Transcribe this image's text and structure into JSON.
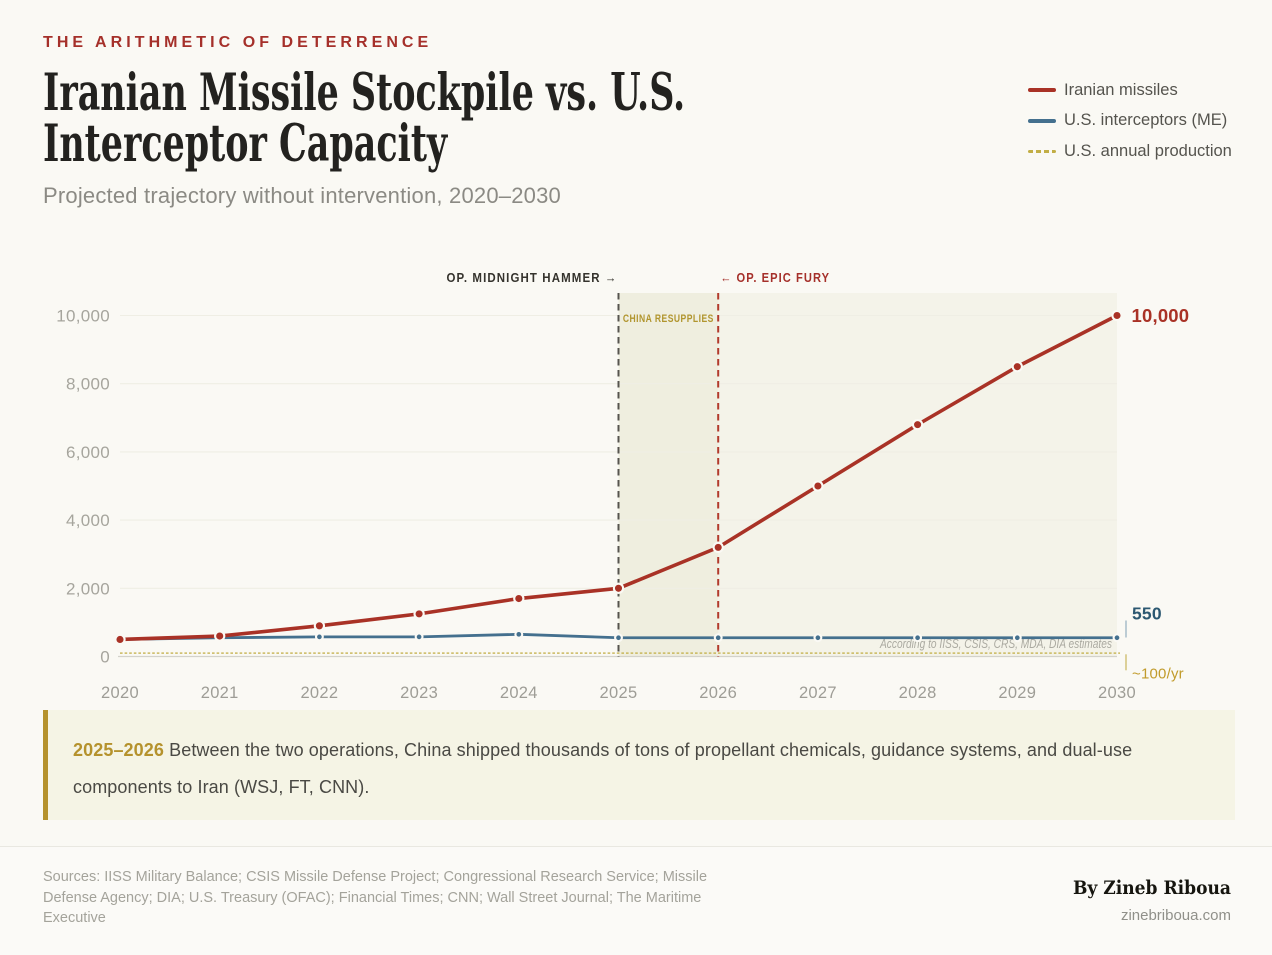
{
  "page": {
    "background": "#FAF9F4",
    "accent_red": "#A5302A",
    "accent_blue": "#44708E",
    "accent_gold": "#B5922D"
  },
  "header": {
    "eyebrow": "THE ARITHMETIC OF DETERRENCE",
    "title_line1": "Iranian Missile Stockpile vs. U.S.",
    "title_line2": "Interceptor Capacity",
    "subtitle": "Projected trajectory without intervention, 2020–2030"
  },
  "legend": {
    "items": [
      {
        "label": "Iranian missiles",
        "color": "#A93226",
        "style": "solid"
      },
      {
        "label": "U.S. interceptors (ME)",
        "color": "#44708E",
        "style": "solid"
      },
      {
        "label": "U.S. annual production",
        "color": "#C2AE45",
        "style": "dashed"
      }
    ]
  },
  "chart_data": {
    "type": "line",
    "x": [
      2020,
      2021,
      2022,
      2023,
      2024,
      2025,
      2026,
      2027,
      2028,
      2029,
      2030
    ],
    "series": [
      {
        "name": "Iranian missiles",
        "color": "#A93226",
        "values": [
          500,
          600,
          900,
          1250,
          1700,
          2000,
          3200,
          5000,
          6800,
          8500,
          10000
        ],
        "end_label": "10,000",
        "end_label_color": "#A93226"
      },
      {
        "name": "U.S. interceptors (ME)",
        "color": "#44708E",
        "values": [
          500,
          550,
          575,
          575,
          650,
          550,
          550,
          550,
          550,
          550,
          550
        ],
        "end_label": "550",
        "end_label_color": "#2C5871"
      },
      {
        "name": "U.S. annual production",
        "color": "#C2AE45",
        "style": "dashed",
        "constant": 100,
        "end_label": "~100/yr",
        "end_label_color": "#C19B2B"
      }
    ],
    "ylim": [
      0,
      10000
    ],
    "yticks": [
      0,
      2000,
      4000,
      6000,
      8000,
      10000
    ],
    "ytick_labels": [
      "0",
      "2,000",
      "4,000",
      "6,000",
      "8,000",
      "10,000"
    ],
    "xtick_labels": [
      "2020",
      "2021",
      "2022",
      "2023",
      "2024",
      "2025",
      "2026",
      "2027",
      "2028",
      "2029",
      "2030"
    ],
    "grid": true,
    "legend_position": "top-right",
    "annotations": {
      "vlines": [
        {
          "x": 2025,
          "label": "OP. MIDNIGHT HAMMER →",
          "label_side": "left",
          "label_color": "#35332D",
          "line_color": "#56544E"
        },
        {
          "x": 2026,
          "label": "← OP. EPIC FURY",
          "label_side": "right",
          "label_color": "#A5302A",
          "line_color": "#B23A2C"
        }
      ],
      "shaded_regions": [
        {
          "from": 2025,
          "to": 2030,
          "fill": "#F4F3E9"
        },
        {
          "from": 2025,
          "to": 2026,
          "fill": "#EFEEDF",
          "label": "CHINA RESUPPLIES",
          "label_color": "#B1952E"
        }
      ],
      "estimates_note": "According to IISS, CSIS, CRS, MDA, DIA estimates"
    }
  },
  "callout": {
    "highlight": "2025–2026",
    "text": "Between the two operations, China shipped thousands of tons of propellant chemicals, guidance systems, and dual-use components to Iran (WSJ, FT, CNN)."
  },
  "footer": {
    "sources": "Sources: IISS Military Balance; CSIS Missile Defense Project; Congressional Research Service; Missile Defense Agency; DIA; U.S. Treasury (OFAC); Financial Times; CNN; Wall Street Journal; The Maritime Executive",
    "byline": "By Zineb Riboua",
    "website": "zinebriboua.com"
  }
}
